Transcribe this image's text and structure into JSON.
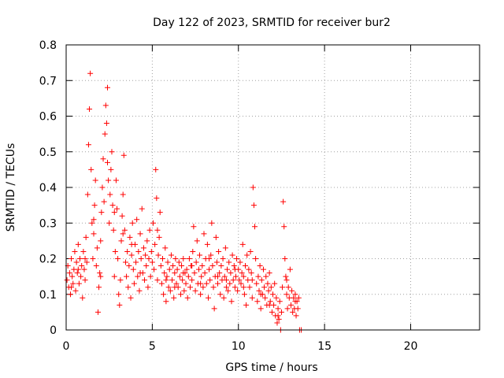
{
  "chart_data": {
    "type": "scatter",
    "title": "Day 122 of 2023, SRMTID for receiver bur2",
    "xlabel": "GPS time / hours",
    "ylabel": "SRMTID / TECUs",
    "xlim": [
      0,
      24
    ],
    "ylim": [
      0,
      0.8
    ],
    "xticks": [
      0,
      5,
      10,
      15,
      20
    ],
    "yticks": [
      0,
      0.1,
      0.2,
      0.3,
      0.4,
      0.5,
      0.6,
      0.7,
      0.8
    ],
    "xtick_labels": [
      "0",
      "5",
      "10",
      "15",
      "20"
    ],
    "ytick_labels": [
      "0",
      "0.1",
      "0.2",
      "0.3",
      "0.4",
      "0.5",
      "0.6",
      "0.7",
      "0.8"
    ],
    "grid": true,
    "marker": "+",
    "color": "#ff0000",
    "series": [
      {
        "name": "SRMTID",
        "points": [
          [
            0.05,
            0.14
          ],
          [
            0.1,
            0.18
          ],
          [
            0.15,
            0.12
          ],
          [
            0.2,
            0.16
          ],
          [
            0.25,
            0.1
          ],
          [
            0.3,
            0.2
          ],
          [
            0.35,
            0.15
          ],
          [
            0.4,
            0.13
          ],
          [
            0.45,
            0.17
          ],
          [
            0.5,
            0.22
          ],
          [
            0.55,
            0.11
          ],
          [
            0.6,
            0.19
          ],
          [
            0.65,
            0.16
          ],
          [
            0.7,
            0.24
          ],
          [
            0.75,
            0.13
          ],
          [
            0.8,
            0.2
          ],
          [
            0.85,
            0.15
          ],
          [
            0.9,
            0.18
          ],
          [
            0.95,
            0.09
          ],
          [
            1.0,
            0.22
          ],
          [
            1.05,
            0.17
          ],
          [
            1.1,
            0.14
          ],
          [
            1.15,
            0.26
          ],
          [
            1.2,
            0.19
          ],
          [
            1.25,
            0.38
          ],
          [
            1.3,
            0.52
          ],
          [
            1.35,
            0.62
          ],
          [
            1.4,
            0.72
          ],
          [
            1.45,
            0.45
          ],
          [
            1.5,
            0.3
          ],
          [
            1.55,
            0.2
          ],
          [
            1.6,
            0.27
          ],
          [
            1.65,
            0.35
          ],
          [
            1.7,
            0.42
          ],
          [
            1.75,
            0.18
          ],
          [
            1.8,
            0.23
          ],
          [
            1.85,
            0.05
          ],
          [
            1.9,
            0.12
          ],
          [
            1.95,
            0.16
          ],
          [
            2.0,
            0.25
          ],
          [
            2.05,
            0.33
          ],
          [
            2.1,
            0.4
          ],
          [
            2.15,
            0.48
          ],
          [
            2.2,
            0.36
          ],
          [
            2.25,
            0.55
          ],
          [
            2.3,
            0.63
          ],
          [
            2.35,
            0.58
          ],
          [
            2.4,
            0.68
          ],
          [
            2.45,
            0.42
          ],
          [
            2.5,
            0.3
          ],
          [
            2.55,
            0.38
          ],
          [
            2.6,
            0.45
          ],
          [
            2.65,
            0.5
          ],
          [
            2.7,
            0.35
          ],
          [
            2.75,
            0.28
          ],
          [
            2.8,
            0.15
          ],
          [
            2.85,
            0.22
          ],
          [
            2.9,
            0.42
          ],
          [
            2.95,
            0.34
          ],
          [
            3.0,
            0.2
          ],
          [
            3.05,
            0.1
          ],
          [
            3.1,
            0.07
          ],
          [
            3.15,
            0.14
          ],
          [
            3.2,
            0.25
          ],
          [
            3.25,
            0.32
          ],
          [
            3.3,
            0.38
          ],
          [
            3.35,
            0.49
          ],
          [
            3.4,
            0.28
          ],
          [
            3.45,
            0.19
          ],
          [
            3.5,
            0.15
          ],
          [
            3.55,
            0.22
          ],
          [
            3.6,
            0.12
          ],
          [
            3.65,
            0.18
          ],
          [
            3.7,
            0.26
          ],
          [
            3.75,
            0.09
          ],
          [
            3.8,
            0.21
          ],
          [
            3.85,
            0.3
          ],
          [
            3.9,
            0.17
          ],
          [
            3.95,
            0.13
          ],
          [
            4.0,
            0.24
          ],
          [
            4.05,
            0.19
          ],
          [
            4.1,
            0.31
          ],
          [
            4.15,
            0.15
          ],
          [
            4.2,
            0.22
          ],
          [
            4.25,
            0.11
          ],
          [
            4.3,
            0.27
          ],
          [
            4.35,
            0.2
          ],
          [
            4.4,
            0.34
          ],
          [
            4.45,
            0.16
          ],
          [
            4.5,
            0.23
          ],
          [
            4.55,
            0.14
          ],
          [
            4.6,
            0.21
          ],
          [
            4.65,
            0.18
          ],
          [
            4.7,
            0.25
          ],
          [
            4.75,
            0.12
          ],
          [
            4.8,
            0.2
          ],
          [
            4.85,
            0.28
          ],
          [
            4.9,
            0.15
          ],
          [
            4.95,
            0.22
          ],
          [
            5.0,
            0.19
          ],
          [
            5.05,
            0.3
          ],
          [
            5.1,
            0.17
          ],
          [
            5.15,
            0.24
          ],
          [
            5.2,
            0.45
          ],
          [
            5.25,
            0.37
          ],
          [
            5.3,
            0.14
          ],
          [
            5.35,
            0.21
          ],
          [
            5.4,
            0.26
          ],
          [
            5.45,
            0.33
          ],
          [
            5.5,
            0.18
          ],
          [
            5.55,
            0.13
          ],
          [
            5.6,
            0.2
          ],
          [
            5.65,
            0.1
          ],
          [
            5.7,
            0.16
          ],
          [
            5.75,
            0.23
          ],
          [
            5.8,
            0.08
          ],
          [
            5.85,
            0.15
          ],
          [
            5.9,
            0.19
          ],
          [
            5.95,
            0.12
          ],
          [
            6.0,
            0.17
          ],
          [
            6.05,
            0.11
          ],
          [
            6.1,
            0.21
          ],
          [
            6.15,
            0.14
          ],
          [
            6.2,
            0.18
          ],
          [
            6.25,
            0.09
          ],
          [
            6.3,
            0.16
          ],
          [
            6.35,
            0.2
          ],
          [
            6.4,
            0.13
          ],
          [
            6.45,
            0.17
          ],
          [
            6.5,
            0.12
          ],
          [
            6.55,
            0.19
          ],
          [
            6.6,
            0.15
          ],
          [
            6.65,
            0.1
          ],
          [
            6.7,
            0.18
          ],
          [
            6.75,
            0.14
          ],
          [
            6.8,
            0.2
          ],
          [
            6.85,
            0.11
          ],
          [
            6.9,
            0.16
          ],
          [
            6.95,
            0.13
          ],
          [
            7.0,
            0.17
          ],
          [
            7.05,
            0.09
          ],
          [
            7.1,
            0.15
          ],
          [
            7.15,
            0.2
          ],
          [
            7.2,
            0.12
          ],
          [
            7.25,
            0.18
          ],
          [
            7.3,
            0.14
          ],
          [
            7.35,
            0.22
          ],
          [
            7.4,
            0.29
          ],
          [
            7.45,
            0.16
          ],
          [
            7.5,
            0.11
          ],
          [
            7.55,
            0.19
          ],
          [
            7.6,
            0.25
          ],
          [
            7.65,
            0.13
          ],
          [
            7.7,
            0.17
          ],
          [
            7.75,
            0.21
          ],
          [
            7.8,
            0.1
          ],
          [
            7.85,
            0.15
          ],
          [
            7.9,
            0.18
          ],
          [
            7.95,
            0.12
          ],
          [
            8.0,
            0.27
          ],
          [
            8.05,
            0.16
          ],
          [
            8.1,
            0.2
          ],
          [
            8.15,
            0.13
          ],
          [
            8.2,
            0.24
          ],
          [
            8.25,
            0.09
          ],
          [
            8.3,
            0.17
          ],
          [
            8.35,
            0.14
          ],
          [
            8.4,
            0.21
          ],
          [
            8.45,
            0.3
          ],
          [
            8.5,
            0.18
          ],
          [
            8.55,
            0.12
          ],
          [
            8.6,
            0.06
          ],
          [
            8.65,
            0.15
          ],
          [
            8.7,
            0.26
          ],
          [
            8.75,
            0.19
          ],
          [
            8.8,
            0.13
          ],
          [
            8.85,
            0.22
          ],
          [
            8.9,
            0.16
          ],
          [
            8.95,
            0.1
          ],
          [
            9.0,
            0.18
          ],
          [
            9.05,
            0.14
          ],
          [
            9.1,
            0.2
          ],
          [
            9.15,
            0.09
          ],
          [
            9.2,
            0.15
          ],
          [
            9.25,
            0.23
          ],
          [
            9.3,
            0.12
          ],
          [
            9.35,
            0.17
          ],
          [
            9.4,
            0.11
          ],
          [
            9.45,
            0.19
          ],
          [
            9.5,
            0.13
          ],
          [
            9.55,
            0.16
          ],
          [
            9.6,
            0.08
          ],
          [
            9.65,
            0.21
          ],
          [
            9.7,
            0.14
          ],
          [
            9.75,
            0.18
          ],
          [
            9.8,
            0.12
          ],
          [
            9.85,
            0.15
          ],
          [
            9.9,
            0.2
          ],
          [
            9.95,
            0.11
          ],
          [
            10.0,
            0.17
          ],
          [
            10.05,
            0.14
          ],
          [
            10.1,
            0.19
          ],
          [
            10.15,
            0.13
          ],
          [
            10.2,
            0.16
          ],
          [
            10.25,
            0.24
          ],
          [
            10.3,
            0.15
          ],
          [
            10.35,
            0.1
          ],
          [
            10.4,
            0.18
          ],
          [
            10.45,
            0.07
          ],
          [
            10.5,
            0.21
          ],
          [
            10.55,
            0.14
          ],
          [
            10.6,
            0.17
          ],
          [
            10.65,
            0.12
          ],
          [
            10.7,
            0.22
          ],
          [
            10.75,
            0.16
          ],
          [
            10.8,
            0.09
          ],
          [
            10.85,
            0.4
          ],
          [
            10.9,
            0.35
          ],
          [
            10.95,
            0.29
          ],
          [
            11.0,
            0.2
          ],
          [
            11.05,
            0.13
          ],
          [
            11.1,
            0.08
          ],
          [
            11.15,
            0.15
          ],
          [
            11.2,
            0.11
          ],
          [
            11.25,
            0.18
          ],
          [
            11.3,
            0.06
          ],
          [
            11.35,
            0.14
          ],
          [
            11.4,
            0.1
          ],
          [
            11.45,
            0.17
          ],
          [
            11.5,
            0.12
          ],
          [
            11.55,
            0.09
          ],
          [
            11.6,
            0.15
          ],
          [
            11.65,
            0.07
          ],
          [
            11.7,
            0.13
          ],
          [
            11.75,
            0.11
          ],
          [
            11.8,
            0.16
          ],
          [
            11.85,
            0.08
          ],
          [
            11.9,
            0.12
          ],
          [
            11.95,
            0.05
          ],
          [
            12.0,
            0.1
          ],
          [
            12.05,
            0.07
          ],
          [
            12.1,
            0.13
          ],
          [
            12.15,
            0.04
          ],
          [
            12.2,
            0.09
          ],
          [
            12.25,
            0.02
          ],
          [
            12.3,
            0.06
          ],
          [
            12.35,
            0.03
          ],
          [
            12.4,
            0.08
          ],
          [
            12.45,
            0.0
          ],
          [
            12.5,
            0.05
          ],
          [
            12.55,
            0.12
          ],
          [
            12.6,
            0.36
          ],
          [
            12.65,
            0.29
          ],
          [
            12.7,
            0.2
          ],
          [
            12.75,
            0.15
          ],
          [
            12.8,
            0.1
          ],
          [
            12.85,
            0.06
          ],
          [
            12.9,
            0.12
          ],
          [
            12.95,
            0.09
          ],
          [
            13.0,
            0.17
          ],
          [
            13.05,
            0.07
          ],
          [
            13.1,
            0.11
          ],
          [
            13.15,
            0.05
          ],
          [
            13.2,
            0.09
          ],
          [
            13.25,
            0.06
          ],
          [
            13.3,
            0.1
          ],
          [
            13.35,
            0.04
          ],
          [
            13.4,
            0.08
          ],
          [
            13.45,
            0.06
          ],
          [
            13.5,
            0.09
          ],
          [
            13.55,
            0.0
          ],
          [
            13.65,
            0.0
          ],
          [
            0.3,
            0.12
          ],
          [
            0.7,
            0.17
          ],
          [
            1.1,
            0.2
          ],
          [
            1.6,
            0.31
          ],
          [
            2.0,
            0.15
          ],
          [
            2.4,
            0.47
          ],
          [
            2.8,
            0.33
          ],
          [
            3.3,
            0.27
          ],
          [
            3.8,
            0.24
          ],
          [
            4.3,
            0.16
          ],
          [
            4.8,
            0.2
          ],
          [
            5.3,
            0.28
          ],
          [
            5.8,
            0.14
          ],
          [
            6.3,
            0.12
          ],
          [
            6.8,
            0.16
          ],
          [
            7.3,
            0.18
          ],
          [
            7.8,
            0.13
          ],
          [
            8.3,
            0.2
          ],
          [
            8.8,
            0.15
          ],
          [
            9.3,
            0.14
          ],
          [
            9.8,
            0.17
          ],
          [
            10.3,
            0.12
          ],
          [
            10.8,
            0.14
          ],
          [
            11.3,
            0.1
          ],
          [
            11.8,
            0.07
          ],
          [
            12.3,
            0.04
          ],
          [
            12.8,
            0.14
          ],
          [
            13.3,
            0.08
          ]
        ]
      }
    ]
  }
}
